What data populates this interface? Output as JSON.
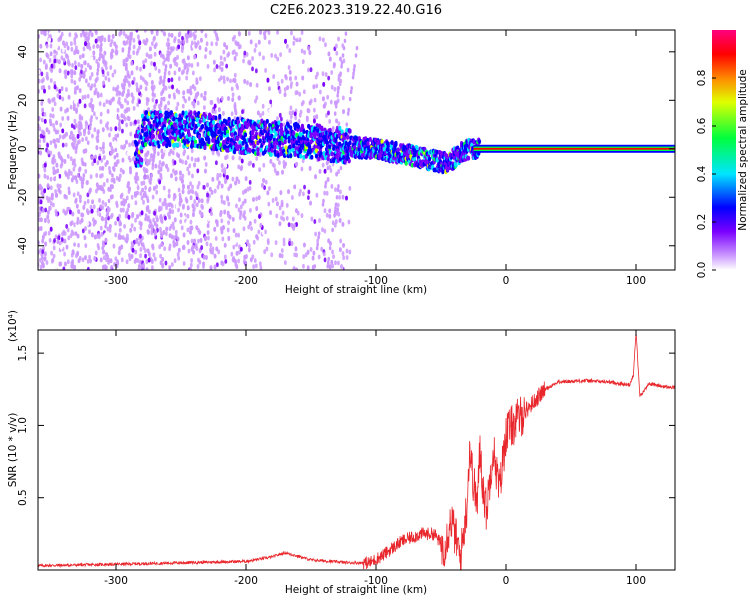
{
  "title": "C2E6.2023.319.22.40.G16",
  "chart_data": [
    {
      "type": "heatmap",
      "xlabel": "Height of straight line (km)",
      "ylabel": "Frequency (Hz)",
      "xlim": [
        -360,
        130
      ],
      "ylim": [
        -50,
        49
      ],
      "xticks": [
        -300,
        -200,
        -100,
        0,
        100
      ],
      "yticks": [
        -40,
        -20,
        0,
        20,
        40
      ],
      "colorbar": {
        "label": "Normalized spectral amplitude",
        "range": [
          0,
          1
        ],
        "ticks": [
          "0.0",
          "0.2",
          "0.4",
          "0.6",
          "0.8"
        ],
        "colors": [
          "#ffffff",
          "#cc99ff",
          "#7a00ff",
          "#0000ff",
          "#00e5ff",
          "#00ff3c",
          "#e0ff00",
          "#ff8800",
          "#ff0000",
          "#ff0080"
        ]
      },
      "ridge": {
        "x": [
          -280,
          -240,
          -200,
          -150,
          -120,
          -90,
          -70,
          -55,
          -45,
          -40,
          -30,
          -20,
          -10,
          0,
          50,
          100,
          130
        ],
        "y": [
          8,
          8,
          5,
          3,
          1,
          -1,
          -3,
          -5,
          -6,
          -4,
          0,
          0,
          1,
          0,
          0,
          0,
          0
        ]
      }
    },
    {
      "type": "line",
      "xlabel": "Height of straight line (km)",
      "ylabel": "SNR (10 * v/v)",
      "yscale": "(x10⁴)",
      "xlim": [
        -360,
        130
      ],
      "ylim": [
        0,
        16600
      ],
      "xticks": [
        -300,
        -200,
        -100,
        0,
        100
      ],
      "yticks": [
        {
          "value": 5000,
          "label": "0.5"
        },
        {
          "value": 10000,
          "label": "1.0"
        },
        {
          "value": 15000,
          "label": "1.5"
        }
      ],
      "color": "#e8262b",
      "series": [
        {
          "x": [
            -360,
            -300,
            -250,
            -200,
            -180,
            -170,
            -150,
            -120,
            -105,
            -95,
            -80,
            -65,
            -55,
            -48,
            -42,
            -35,
            -30,
            -28,
            -25,
            -22,
            -20,
            -18,
            -15,
            -10,
            -5,
            0,
            10,
            20,
            30,
            40,
            60,
            80,
            95,
            98,
            100,
            103,
            110,
            120,
            130
          ],
          "y": [
            300,
            400,
            500,
            600,
            900,
            1200,
            700,
            500,
            500,
            1000,
            2000,
            2500,
            2500,
            1500,
            3500,
            800,
            4500,
            8500,
            6000,
            4500,
            8500,
            6000,
            4000,
            8500,
            5500,
            9500,
            10500,
            11500,
            12500,
            13000,
            13100,
            13000,
            12800,
            13500,
            16500,
            12000,
            12900,
            12700,
            12600
          ]
        }
      ]
    }
  ]
}
